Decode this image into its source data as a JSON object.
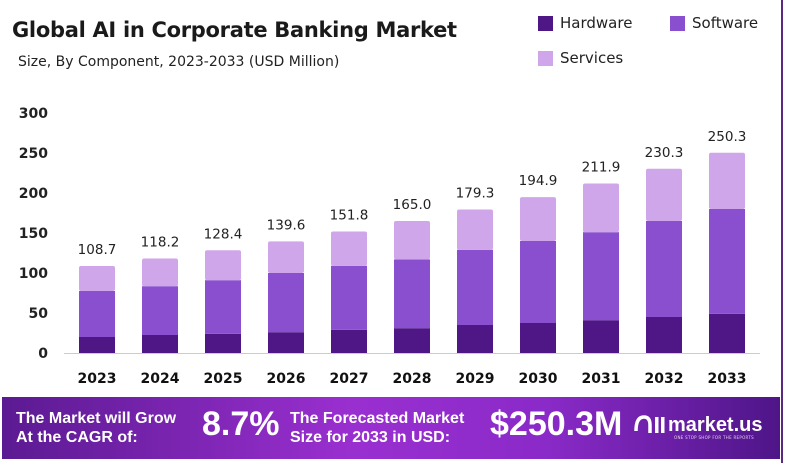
{
  "chart_data": {
    "type": "bar",
    "stacked": true,
    "title": "Global AI in Corporate Banking Market",
    "subtitle": "Size, By Component, 2023-2033 (USD Million)",
    "categories": [
      "2023",
      "2024",
      "2025",
      "2026",
      "2027",
      "2028",
      "2029",
      "2030",
      "2031",
      "2032",
      "2033"
    ],
    "series": [
      {
        "name": "Hardware",
        "color": "#4e1785",
        "values": [
          20,
          22.5,
          24,
          26,
          29,
          31,
          35,
          37.5,
          41,
          45,
          49
        ]
      },
      {
        "name": "Software",
        "color": "#8a4fcf",
        "values": [
          57.5,
          61,
          67,
          74,
          80,
          86,
          94,
          102.5,
          110,
          120,
          131
        ]
      },
      {
        "name": "Services",
        "color": "#d0a6ea",
        "values": [
          31.2,
          34.7,
          37.4,
          39.6,
          42.8,
          48,
          50.3,
          54.9,
          60.9,
          65.3,
          70.3
        ]
      }
    ],
    "totals": [
      "108.7",
      "118.2",
      "128.4",
      "139.6",
      "151.8",
      "165.0",
      "179.3",
      "194.9",
      "211.9",
      "230.3",
      "250.3"
    ],
    "yticks": [
      "0",
      "50",
      "100",
      "150",
      "200",
      "250",
      "300"
    ],
    "ylim": [
      0,
      300
    ],
    "grid": false,
    "legend_position": "top-right"
  },
  "footer": {
    "cagr_label_1": "The Market will Grow",
    "cagr_label_2": "At the CAGR of:",
    "cagr_value": "8.7%",
    "forecast_label_1": "The Forecasted Market",
    "forecast_label_2": "Size for 2033 in USD:",
    "forecast_value": "$250.3M",
    "brand": "market.us",
    "tagline": "ONE STOP SHOP FOR THE REPORTS"
  }
}
